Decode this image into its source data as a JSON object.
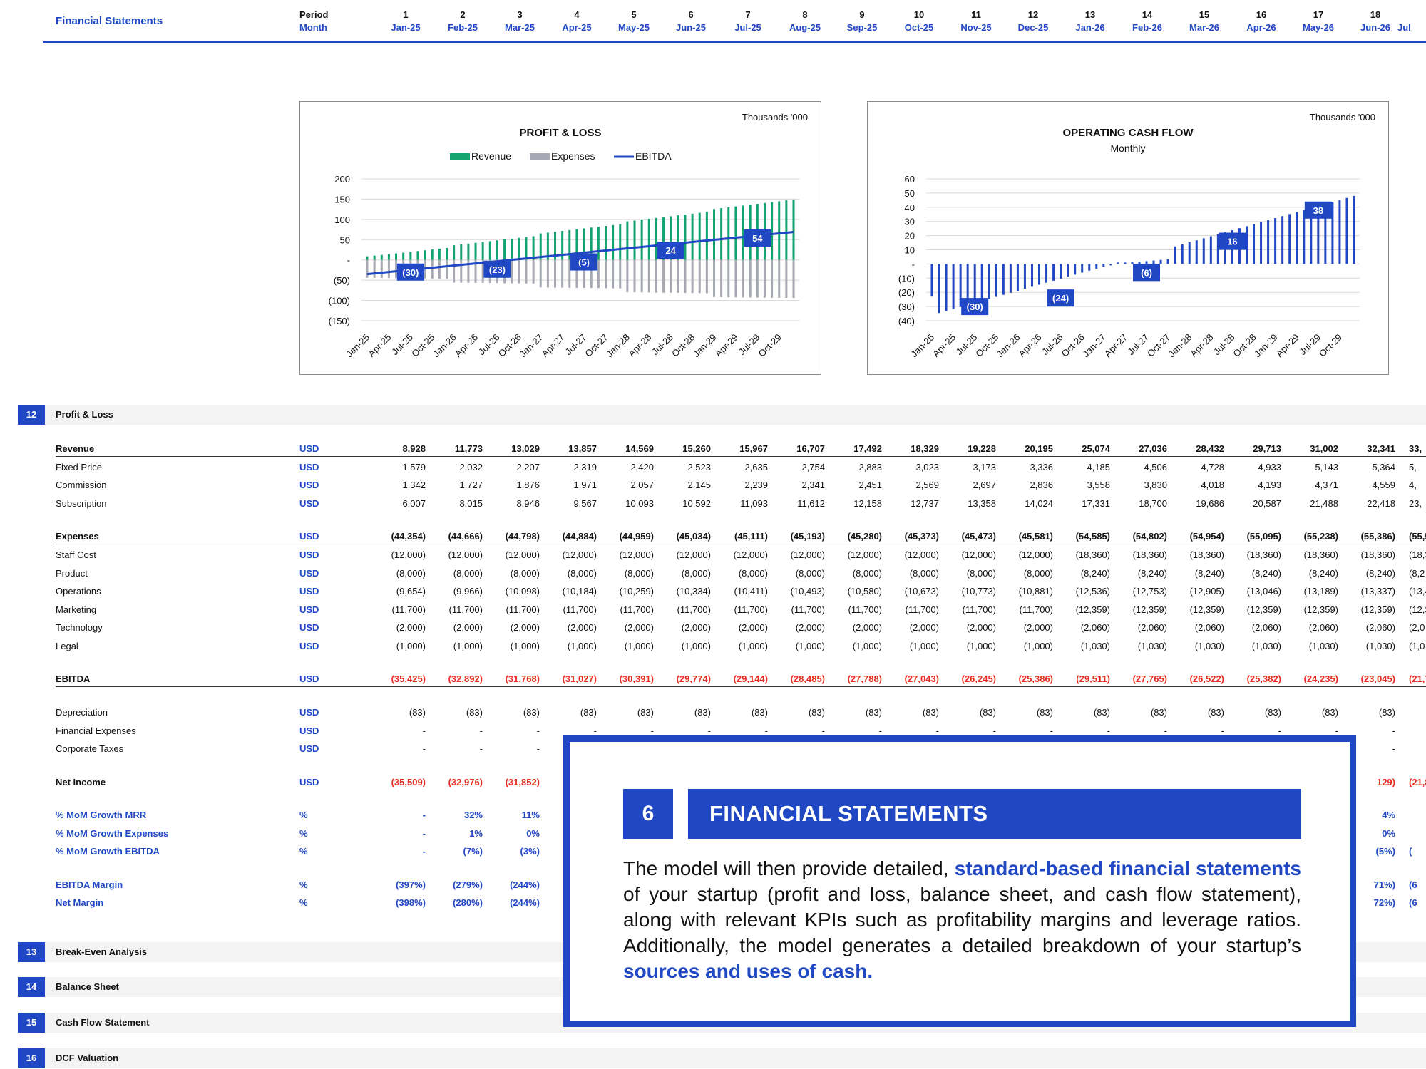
{
  "header": {
    "title": "Financial Statements",
    "period_label": "Period",
    "month_label": "Month",
    "period_numbers": [
      "1",
      "2",
      "3",
      "4",
      "5",
      "6",
      "7",
      "8",
      "9",
      "10",
      "11",
      "12",
      "13",
      "14",
      "15",
      "16",
      "17",
      "18"
    ],
    "months": [
      "Jan-25",
      "Feb-25",
      "Mar-25",
      "Apr-25",
      "May-25",
      "Jun-25",
      "Jul-25",
      "Aug-25",
      "Sep-25",
      "Oct-25",
      "Nov-25",
      "Dec-25",
      "Jan-26",
      "Feb-26",
      "Mar-26",
      "Apr-26",
      "May-26",
      "Jun-26"
    ],
    "next_month_partial": "Jul",
    "accent_color": "#2048c4"
  },
  "chart_data": [
    {
      "type": "bar",
      "title": "PROFIT & LOSS",
      "units_note": "Thousands '000",
      "legend": [
        "Revenue",
        "Expenses",
        "EBITDA"
      ],
      "legend_placement": "top-center",
      "colors": {
        "Revenue": "#12a36f",
        "Expenses": "#a6a9b3",
        "EBITDA": "#2048c4"
      },
      "y_ticks": [
        "200",
        "150",
        "100",
        "50",
        "-",
        "(50)",
        "(100)",
        "(150)"
      ],
      "ylim": [
        -150,
        200
      ],
      "x_ticks": [
        "Jan-25",
        "Apr-25",
        "Jul-25",
        "Oct-25",
        "Jan-26",
        "Apr-26",
        "Jul-26",
        "Oct-26",
        "Jan-27",
        "Apr-27",
        "Jul-27",
        "Oct-27",
        "Jan-28",
        "Apr-28",
        "Jul-28",
        "Oct-28",
        "Jan-29",
        "Apr-29",
        "Jul-29",
        "Oct-29"
      ],
      "revenue_start": 9,
      "revenue_end": 157,
      "expenses_start": -44,
      "expenses_end": -94,
      "ebitda_start": -35,
      "ebitda_end": 69,
      "labels": [
        {
          "period": "Jul-25",
          "value": -30,
          "text": "(30)"
        },
        {
          "period": "Jul-26",
          "value": -23,
          "text": "(23)"
        },
        {
          "period": "Jul-27",
          "value": -5,
          "text": "(5)"
        },
        {
          "period": "Jul-28",
          "value": 24,
          "text": "24"
        },
        {
          "period": "Jul-29",
          "value": 54,
          "text": "54"
        }
      ],
      "grid": true
    },
    {
      "type": "bar",
      "title": "OPERATING CASH FLOW",
      "subtitle": "Monthly",
      "units_note": "Thousands '000",
      "colors": {
        "bars": "#2048c4"
      },
      "y_ticks": [
        "60",
        "50",
        "40",
        "30",
        "20",
        "10",
        "-",
        "(10)",
        "(20)",
        "(30)",
        "(40)"
      ],
      "ylim": [
        -40,
        60
      ],
      "x_ticks": [
        "Jan-25",
        "Apr-25",
        "Jul-25",
        "Oct-25",
        "Jan-26",
        "Apr-26",
        "Jul-26",
        "Oct-26",
        "Jan-27",
        "Apr-27",
        "Jul-27",
        "Oct-27",
        "Jan-28",
        "Apr-28",
        "Jul-28",
        "Oct-28",
        "Jan-29",
        "Apr-29",
        "Jul-29",
        "Oct-29"
      ],
      "labels": [
        {
          "period": "Jul-25",
          "value": -30,
          "text": "(30)"
        },
        {
          "period": "Jul-26",
          "value": -24,
          "text": "(24)"
        },
        {
          "period": "Jul-27",
          "value": -6,
          "text": "(6)"
        },
        {
          "period": "Jul-28",
          "value": 16,
          "text": "16"
        },
        {
          "period": "Jul-29",
          "value": 38,
          "text": "38"
        }
      ],
      "grid": true
    }
  ],
  "sections": [
    {
      "num": "12",
      "title": "Profit & Loss"
    },
    {
      "num": "13",
      "title": "Break-Even Analysis"
    },
    {
      "num": "14",
      "title": "Balance Sheet"
    },
    {
      "num": "15",
      "title": "Cash Flow Statement"
    },
    {
      "num": "16",
      "title": "DCF Valuation"
    }
  ],
  "table": {
    "rows": [
      {
        "label": "Revenue",
        "unit": "USD",
        "style": "bold",
        "values": [
          "8,928",
          "11,773",
          "13,029",
          "13,857",
          "14,569",
          "15,260",
          "15,967",
          "16,707",
          "17,492",
          "18,329",
          "19,228",
          "20,195",
          "25,074",
          "27,036",
          "28,432",
          "29,713",
          "31,002",
          "32,341",
          "33,"
        ]
      },
      {
        "label": "Fixed Price",
        "unit": "USD",
        "style": "",
        "values": [
          "1,579",
          "2,032",
          "2,207",
          "2,319",
          "2,420",
          "2,523",
          "2,635",
          "2,754",
          "2,883",
          "3,023",
          "3,173",
          "3,336",
          "4,185",
          "4,506",
          "4,728",
          "4,933",
          "5,143",
          "5,364",
          "5,"
        ]
      },
      {
        "label": "Commission",
        "unit": "USD",
        "style": "",
        "values": [
          "1,342",
          "1,727",
          "1,876",
          "1,971",
          "2,057",
          "2,145",
          "2,239",
          "2,341",
          "2,451",
          "2,569",
          "2,697",
          "2,836",
          "3,558",
          "3,830",
          "4,018",
          "4,193",
          "4,371",
          "4,559",
          "4,"
        ]
      },
      {
        "label": "Subscription",
        "unit": "USD",
        "style": "",
        "values": [
          "6,007",
          "8,015",
          "8,946",
          "9,567",
          "10,093",
          "10,592",
          "11,093",
          "11,612",
          "12,158",
          "12,737",
          "13,358",
          "14,024",
          "17,331",
          "18,700",
          "19,686",
          "20,587",
          "21,488",
          "22,418",
          "23,"
        ]
      },
      {
        "label": "Expenses",
        "unit": "USD",
        "style": "bold",
        "values": [
          "(44,354)",
          "(44,666)",
          "(44,798)",
          "(44,884)",
          "(44,959)",
          "(45,034)",
          "(45,111)",
          "(45,193)",
          "(45,280)",
          "(45,373)",
          "(45,473)",
          "(45,581)",
          "(54,585)",
          "(54,802)",
          "(54,954)",
          "(55,095)",
          "(55,238)",
          "(55,386)",
          "(55,5"
        ]
      },
      {
        "label": "Staff Cost",
        "unit": "USD",
        "style": "",
        "values": [
          "(12,000)",
          "(12,000)",
          "(12,000)",
          "(12,000)",
          "(12,000)",
          "(12,000)",
          "(12,000)",
          "(12,000)",
          "(12,000)",
          "(12,000)",
          "(12,000)",
          "(12,000)",
          "(18,360)",
          "(18,360)",
          "(18,360)",
          "(18,360)",
          "(18,360)",
          "(18,360)",
          "(18,3"
        ]
      },
      {
        "label": "Product",
        "unit": "USD",
        "style": "",
        "values": [
          "(8,000)",
          "(8,000)",
          "(8,000)",
          "(8,000)",
          "(8,000)",
          "(8,000)",
          "(8,000)",
          "(8,000)",
          "(8,000)",
          "(8,000)",
          "(8,000)",
          "(8,000)",
          "(8,240)",
          "(8,240)",
          "(8,240)",
          "(8,240)",
          "(8,240)",
          "(8,240)",
          "(8,2"
        ]
      },
      {
        "label": "Operations",
        "unit": "USD",
        "style": "",
        "values": [
          "(9,654)",
          "(9,966)",
          "(10,098)",
          "(10,184)",
          "(10,259)",
          "(10,334)",
          "(10,411)",
          "(10,493)",
          "(10,580)",
          "(10,673)",
          "(10,773)",
          "(10,881)",
          "(12,536)",
          "(12,753)",
          "(12,905)",
          "(13,046)",
          "(13,189)",
          "(13,337)",
          "(13,4"
        ]
      },
      {
        "label": "Marketing",
        "unit": "USD",
        "style": "",
        "values": [
          "(11,700)",
          "(11,700)",
          "(11,700)",
          "(11,700)",
          "(11,700)",
          "(11,700)",
          "(11,700)",
          "(11,700)",
          "(11,700)",
          "(11,700)",
          "(11,700)",
          "(11,700)",
          "(12,359)",
          "(12,359)",
          "(12,359)",
          "(12,359)",
          "(12,359)",
          "(12,359)",
          "(12,3"
        ]
      },
      {
        "label": "Technology",
        "unit": "USD",
        "style": "",
        "values": [
          "(2,000)",
          "(2,000)",
          "(2,000)",
          "(2,000)",
          "(2,000)",
          "(2,000)",
          "(2,000)",
          "(2,000)",
          "(2,000)",
          "(2,000)",
          "(2,000)",
          "(2,000)",
          "(2,060)",
          "(2,060)",
          "(2,060)",
          "(2,060)",
          "(2,060)",
          "(2,060)",
          "(2,0"
        ]
      },
      {
        "label": "Legal",
        "unit": "USD",
        "style": "",
        "values": [
          "(1,000)",
          "(1,000)",
          "(1,000)",
          "(1,000)",
          "(1,000)",
          "(1,000)",
          "(1,000)",
          "(1,000)",
          "(1,000)",
          "(1,000)",
          "(1,000)",
          "(1,000)",
          "(1,030)",
          "(1,030)",
          "(1,030)",
          "(1,030)",
          "(1,030)",
          "(1,030)",
          "(1,0"
        ]
      },
      {
        "label": "EBITDA",
        "unit": "USD",
        "style": "bold red",
        "values": [
          "(35,425)",
          "(32,892)",
          "(31,768)",
          "(31,027)",
          "(30,391)",
          "(29,774)",
          "(29,144)",
          "(28,485)",
          "(27,788)",
          "(27,043)",
          "(26,245)",
          "(25,386)",
          "(29,511)",
          "(27,765)",
          "(26,522)",
          "(25,382)",
          "(24,235)",
          "(23,045)",
          "(21,7"
        ]
      },
      {
        "label": "Depreciation",
        "unit": "USD",
        "style": "",
        "values": [
          "(83)",
          "(83)",
          "(83)",
          "(83)",
          "(83)",
          "(83)",
          "(83)",
          "(83)",
          "(83)",
          "(83)",
          "(83)",
          "(83)",
          "(83)",
          "(83)",
          "(83)",
          "(83)",
          "(83)",
          "(83)",
          ""
        ]
      },
      {
        "label": "Financial Expenses",
        "unit": "USD",
        "style": "",
        "values": [
          "-",
          "-",
          "-",
          "-",
          "-",
          "-",
          "-",
          "-",
          "-",
          "-",
          "-",
          "-",
          "-",
          "-",
          "-",
          "-",
          "-",
          "-",
          ""
        ]
      },
      {
        "label": "Corporate Taxes",
        "unit": "USD",
        "style": "",
        "values": [
          "-",
          "-",
          "-",
          "",
          "",
          "",
          "",
          "",
          "",
          "",
          "",
          "",
          "",
          "",
          "",
          "",
          "",
          "-",
          ""
        ]
      },
      {
        "label": "Net Income",
        "unit": "USD",
        "style": "bold red",
        "values": [
          "(35,509)",
          "(32,976)",
          "(31,852)",
          "(31,",
          "",
          "",
          "",
          "",
          "",
          "",
          "",
          "",
          "",
          "",
          "",
          "",
          "",
          "129)",
          "(21,8"
        ]
      },
      {
        "label": "% MoM Growth MRR",
        "unit": "%",
        "style": "blue",
        "values": [
          "-",
          "32%",
          "11%",
          "",
          "",
          "",
          "",
          "",
          "",
          "",
          "",
          "",
          "",
          "",
          "",
          "",
          "",
          "4%",
          ""
        ]
      },
      {
        "label": "% MoM Growth Expenses",
        "unit": "%",
        "style": "blue",
        "values": [
          "-",
          "1%",
          "0%",
          "",
          "",
          "",
          "",
          "",
          "",
          "",
          "",
          "",
          "",
          "",
          "",
          "",
          "",
          "0%",
          ""
        ]
      },
      {
        "label": "% MoM Growth EBITDA",
        "unit": "%",
        "style": "blue",
        "values": [
          "-",
          "(7%)",
          "(3%)",
          "",
          "",
          "",
          "",
          "",
          "",
          "",
          "",
          "",
          "",
          "",
          "",
          "",
          "",
          "(5%)",
          "("
        ]
      },
      {
        "label": "EBITDA Margin",
        "unit": "%",
        "style": "blue",
        "values": [
          "(397%)",
          "(279%)",
          "(244%)",
          "(22",
          "",
          "",
          "",
          "",
          "",
          "",
          "",
          "",
          "",
          "",
          "",
          "",
          "",
          "71%)",
          "(6"
        ]
      },
      {
        "label": "Net Margin",
        "unit": "%",
        "style": "blue",
        "values": [
          "(398%)",
          "(280%)",
          "(244%)",
          "(22",
          "",
          "",
          "",
          "",
          "",
          "",
          "",
          "",
          "",
          "",
          "",
          "",
          "",
          "72%)",
          "(6"
        ]
      }
    ]
  },
  "card": {
    "number": "6",
    "title": "FINANCIAL STATEMENTS",
    "body_1": "The model will then provide detailed, ",
    "highlight_1": "standard-based financial statements",
    "body_2": " of your startup (profit and loss, balance sheet, and cash flow statement), along with relevant KPIs such as profitability margins and leverage ratios. Additionally, the model generates a detailed breakdown of your startup’s ",
    "highlight_2": "sources and uses of cash."
  }
}
